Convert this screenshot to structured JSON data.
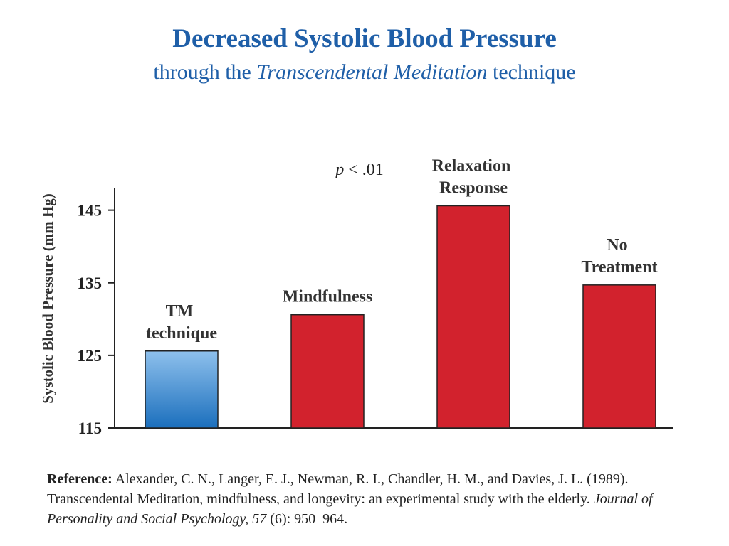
{
  "chart_data": {
    "type": "bar",
    "title": "Decreased Systolic Blood Pressure",
    "subtitle": [
      "through the",
      "Transcendental Meditation",
      "technique"
    ],
    "annotation": [
      "p",
      "< .01"
    ],
    "y_label": "Systolic Blood Pressure (mm Hg)",
    "categories": [
      "TM technique",
      "Mindfulness",
      "Relaxation Response",
      "No Treatment"
    ],
    "values": [
      125.6,
      130.6,
      145.6,
      134.7
    ],
    "colors": [
      {
        "top": "#8ec0ec",
        "bottom": "#1b6fbd"
      },
      "#d2222d",
      "#d2222d",
      "#d2222d"
    ],
    "ylim": [
      115,
      148
    ],
    "yticks": [
      115,
      125,
      135,
      145
    ],
    "reference": [
      "Reference:",
      "Alexander, C. N., Langer, E. J., Newman, R. I., Chandler, H. M., and Davies, J. L. (1989). Transcendental Meditation, mindfulness, and longevity: an experimental study with the elderly.",
      "Journal of Personality and Social Psychology, 57",
      "(6): 950–964."
    ]
  }
}
